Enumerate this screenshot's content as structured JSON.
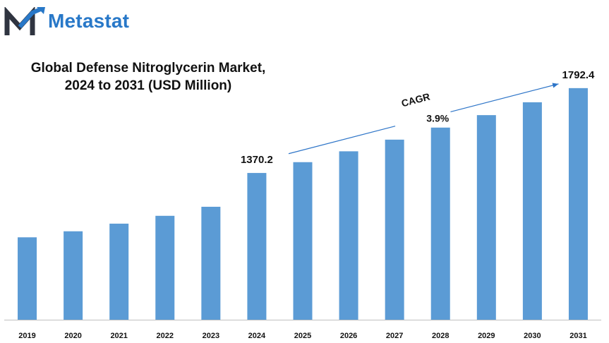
{
  "brand": {
    "name": "Metastat",
    "logo_icon": "metastat-m-logo-icon",
    "color": "#2878c8"
  },
  "chart_data": {
    "type": "bar",
    "title_line1": "Global Defense Nitroglycerin Market,",
    "title_line2": "2024 to 2031 (USD Million)",
    "categories": [
      "2019",
      "2020",
      "2021",
      "2022",
      "2023",
      "2024",
      "2025",
      "2026",
      "2027",
      "2028",
      "2029",
      "2030",
      "2031"
    ],
    "values": [
      1050,
      1080,
      1118,
      1157,
      1202,
      1370.2,
      1424,
      1478,
      1536,
      1596,
      1658,
      1722,
      1792.4
    ],
    "data_labels": [
      {
        "category": "2024",
        "text": "1370.2"
      },
      {
        "category": "2031",
        "text": "1792.4"
      }
    ],
    "annotation": {
      "label": "CAGR",
      "value": "3.9%",
      "from": "2025",
      "to": "2031"
    },
    "bar_color": "#5b9bd5",
    "ylim": [
      640,
      1820
    ],
    "grid": false,
    "legend": "none"
  }
}
